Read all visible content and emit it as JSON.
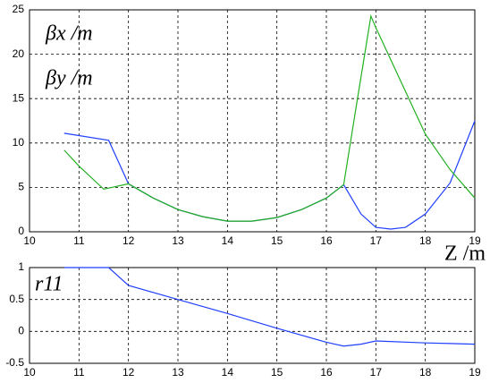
{
  "chart_data": [
    {
      "type": "line",
      "xlabel": "Z /m",
      "xlim": [
        10,
        19
      ],
      "xticks": [
        10,
        11,
        12,
        13,
        14,
        15,
        16,
        17,
        18,
        19
      ],
      "ylim": [
        0,
        25
      ],
      "yticks": [
        0,
        5,
        10,
        15,
        20,
        25
      ],
      "grid": true,
      "series": [
        {
          "name": "βx /m",
          "color": "#1f3fff",
          "x": [
            10.7,
            11.6,
            12,
            12.5,
            13,
            13.5,
            14,
            14.5,
            15,
            15.5,
            16,
            16.35,
            16.7,
            17,
            17.3,
            17.6,
            18,
            18.5,
            19
          ],
          "values": [
            11.1,
            10.3,
            5.4,
            3.8,
            2.5,
            1.7,
            1.2,
            1.2,
            1.6,
            2.5,
            3.8,
            5.3,
            2,
            0.5,
            0.3,
            0.5,
            2,
            5.5,
            12.5
          ]
        },
        {
          "name": "βy /m",
          "color": "#22b022",
          "x": [
            10.7,
            11,
            11.5,
            12,
            12.5,
            13,
            13.5,
            14,
            14.5,
            15,
            15.5,
            16,
            16.35,
            16.6,
            16.9,
            17,
            17.5,
            18,
            18.5,
            19
          ],
          "values": [
            9.2,
            7.4,
            4.8,
            5.4,
            3.8,
            2.5,
            1.7,
            1.2,
            1.2,
            1.6,
            2.5,
            3.8,
            5.3,
            14,
            24.3,
            23,
            17,
            11,
            7,
            3.8
          ]
        }
      ]
    },
    {
      "type": "line",
      "annotation": "r11",
      "xlim": [
        10,
        19
      ],
      "xticks": [
        10,
        11,
        12,
        13,
        14,
        15,
        16,
        17,
        18,
        19
      ],
      "ylim": [
        -0.5,
        1
      ],
      "yticks": [
        -0.5,
        0,
        0.5,
        1
      ],
      "grid": true,
      "series": [
        {
          "color": "#1f3fff",
          "x": [
            10.7,
            11.6,
            12,
            13,
            14,
            15,
            16,
            16.35,
            16.7,
            17,
            18,
            19
          ],
          "values": [
            1,
            1,
            0.72,
            0.5,
            0.28,
            0.05,
            -0.17,
            -0.23,
            -0.2,
            -0.15,
            -0.18,
            -0.2
          ]
        }
      ]
    }
  ]
}
